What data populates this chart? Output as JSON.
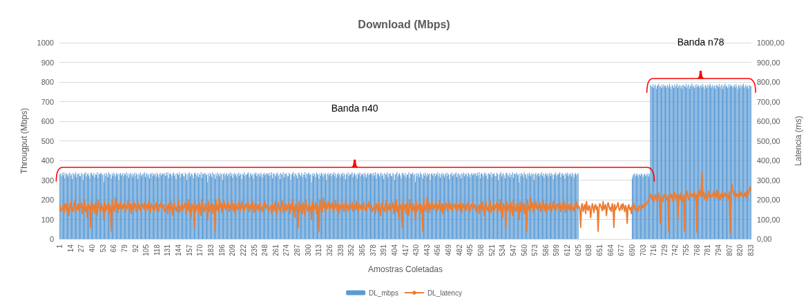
{
  "chart_data": {
    "type": "bar",
    "title": "Download (Mbps)",
    "xlabel": "Amostras Coletadas",
    "ylabel": "Througput (Mbps)",
    "y2label": "Latencia (ms)",
    "categories": [
      "1",
      null,
      null,
      null,
      null,
      null,
      null,
      null,
      null,
      null,
      null,
      null,
      null,
      "14",
      null,
      null,
      null,
      null,
      null,
      null,
      null,
      null,
      null,
      null,
      null,
      null,
      "27",
      null,
      null,
      null,
      null,
      null,
      null,
      null,
      null,
      null,
      null,
      null,
      null,
      "40",
      null,
      null,
      null,
      null,
      null,
      null,
      null,
      null,
      null,
      null,
      null,
      null,
      "53",
      null,
      null,
      null,
      null,
      null,
      null,
      null,
      null,
      null,
      null,
      null,
      null,
      "66",
      null,
      null,
      null,
      null,
      null,
      null,
      null,
      null,
      null,
      null,
      null,
      null,
      "79",
      null,
      null,
      null,
      null,
      null,
      null,
      null,
      null,
      null,
      null,
      null,
      null,
      "92",
      null,
      null,
      null,
      null,
      null,
      null,
      null,
      null,
      null,
      null,
      null,
      null,
      "105",
      null,
      null,
      null,
      null,
      null,
      null,
      null,
      null,
      null,
      null,
      null,
      null,
      "118",
      null,
      null,
      null,
      null,
      null,
      null,
      null,
      null,
      null,
      null,
      null,
      null,
      "131",
      null,
      null,
      null,
      null,
      null,
      null,
      null,
      null,
      null,
      null,
      null,
      null,
      "144",
      null,
      null,
      null,
      null,
      null,
      null,
      null,
      null,
      null,
      null,
      null,
      null,
      "157",
      null,
      null,
      null,
      null,
      null,
      null,
      null,
      null,
      null,
      null,
      null,
      null,
      "170",
      null,
      null,
      null,
      null,
      null,
      null,
      null,
      null,
      null,
      null,
      null,
      null,
      "183",
      null,
      null,
      null,
      null,
      null,
      null,
      null,
      null,
      null,
      null,
      null,
      null,
      "196",
      null,
      null,
      null,
      null,
      null,
      null,
      null,
      null,
      null,
      null,
      null,
      null,
      "209",
      null,
      null,
      null,
      null,
      null,
      null,
      null,
      null,
      null,
      null,
      null,
      null,
      "222",
      null,
      null,
      null,
      null,
      null,
      null,
      null,
      null,
      null,
      null,
      null,
      null,
      "235",
      null,
      null,
      null,
      null,
      null,
      null,
      null,
      null,
      null,
      null,
      null,
      null,
      "248",
      null,
      null,
      null,
      null,
      null,
      null,
      null,
      null,
      null,
      null,
      null,
      null,
      "261",
      null,
      null,
      null,
      null,
      null,
      null,
      null,
      null,
      null,
      null,
      null,
      null,
      "274",
      null,
      null,
      null,
      null,
      null,
      null,
      null,
      null,
      null,
      null,
      null,
      null,
      "287",
      null,
      null,
      null,
      null,
      null,
      null,
      null,
      null,
      null,
      null,
      null,
      null,
      "300",
      null,
      null,
      null,
      null,
      null,
      null,
      null,
      null,
      null,
      null,
      null,
      null,
      "313",
      null,
      null,
      null,
      null,
      null,
      null,
      null,
      null,
      null,
      null,
      null,
      null,
      "326",
      null,
      null,
      null,
      null,
      null,
      null,
      null,
      null,
      null,
      null,
      null,
      null,
      "339",
      null,
      null,
      null,
      null,
      null,
      null,
      null,
      null,
      null,
      null,
      null,
      null,
      "352",
      null,
      null,
      null,
      null,
      null,
      null,
      null,
      null,
      null,
      null,
      null,
      null,
      "365",
      null,
      null,
      null,
      null,
      null,
      null,
      null,
      null,
      null,
      null,
      null,
      null,
      "378",
      null,
      null,
      null,
      null,
      null,
      null,
      null,
      null,
      null,
      null,
      null,
      null,
      "391",
      null,
      null,
      null,
      null,
      null,
      null,
      null,
      null,
      null,
      null,
      null,
      null,
      "404",
      null,
      null,
      null,
      null,
      null,
      null,
      null,
      null,
      null,
      null,
      null,
      null,
      "417",
      null,
      null,
      null,
      null,
      null,
      null,
      null,
      null,
      null,
      null,
      null,
      null,
      "430",
      null,
      null,
      null,
      null,
      null,
      null,
      null,
      null,
      null,
      null,
      null,
      null,
      "443",
      null,
      null,
      null,
      null,
      null,
      null,
      null,
      null,
      null,
      null,
      null,
      null,
      "456",
      null,
      null,
      null,
      null,
      null,
      null,
      null,
      null,
      null,
      null,
      null,
      null,
      "469",
      null,
      null,
      null,
      null,
      null,
      null,
      null,
      null,
      null,
      null,
      null,
      null,
      "482",
      null,
      null,
      null,
      null,
      null,
      null,
      null,
      null,
      null,
      null,
      null,
      null,
      "495",
      null,
      null,
      null,
      null,
      null,
      null,
      null,
      null,
      null,
      null,
      null,
      null,
      "508",
      null,
      null,
      null,
      null,
      null,
      null,
      null,
      null,
      null,
      null,
      null,
      null,
      "521",
      null,
      null,
      null,
      null,
      null,
      null,
      null,
      null,
      null,
      null,
      null,
      null,
      "534",
      null,
      null,
      null,
      null,
      null,
      null,
      null,
      null,
      null,
      null,
      null,
      null,
      "547",
      null,
      null,
      null,
      null,
      null,
      null,
      null,
      null,
      null,
      null,
      null,
      null,
      "560",
      null,
      null,
      null,
      null,
      null,
      null,
      null,
      null,
      null,
      null,
      null,
      null,
      "573",
      null,
      null,
      null,
      null,
      null,
      null,
      null,
      null,
      null,
      null,
      null,
      null,
      "586",
      null,
      null,
      null,
      null,
      null,
      null,
      null,
      null,
      null,
      null,
      null,
      null,
      "599",
      null,
      null,
      null,
      null,
      null,
      null,
      null,
      null,
      null,
      null,
      null,
      null,
      "612",
      null,
      null,
      null,
      null,
      null,
      null,
      null,
      null,
      null,
      null,
      null,
      null,
      "625",
      null,
      null,
      null,
      null,
      null,
      null,
      null,
      null,
      null,
      null,
      null,
      null,
      "638",
      null,
      null,
      null,
      null,
      null,
      null,
      null,
      null,
      null,
      null,
      null,
      null,
      "651",
      null,
      null,
      null,
      null,
      null,
      null,
      null,
      null,
      null,
      null,
      null,
      null,
      "664",
      null,
      null,
      null,
      null,
      null,
      null,
      null,
      null,
      null,
      null,
      null,
      null,
      "677",
      null,
      null,
      null,
      null,
      null,
      null,
      null,
      null,
      null,
      null,
      null,
      null,
      "690",
      null,
      null,
      null,
      null,
      null,
      null,
      null,
      null,
      null,
      null,
      null,
      null,
      "703",
      null,
      null,
      null,
      null,
      null,
      null,
      null,
      null,
      null,
      null,
      null,
      null,
      "716",
      null,
      null,
      null,
      null,
      null,
      null,
      null,
      null,
      null,
      null,
      null,
      null,
      "729",
      null,
      null,
      null,
      null,
      null,
      null,
      null,
      null,
      null,
      null,
      null,
      null,
      "742",
      null,
      null,
      null,
      null,
      null,
      null,
      null,
      null,
      null,
      null,
      null,
      null,
      "755",
      null,
      null,
      null,
      null,
      null,
      null,
      null,
      null,
      null,
      null,
      null,
      null,
      "768",
      null,
      null,
      null,
      null,
      null,
      null,
      null,
      null,
      null,
      null,
      null,
      null,
      "781",
      null,
      null,
      null,
      null,
      null,
      null,
      null,
      null,
      null,
      null,
      null,
      null,
      "794",
      null,
      null,
      null,
      null,
      null,
      null,
      null,
      null,
      null,
      null,
      null,
      null,
      "807",
      null,
      null,
      null,
      null,
      null,
      null,
      null,
      null,
      null,
      null,
      null,
      null,
      "820",
      null,
      null,
      null,
      null,
      null,
      null,
      null,
      null,
      null,
      null,
      null,
      null,
      "833"
    ],
    "series": [
      {
        "name": "DL_mbps",
        "color": "#5b9bd5",
        "values": [
          330,
          335,
          320,
          338,
          325,
          340,
          310,
          332,
          336,
          328,
          318,
          334,
          339,
          322,
          330,
          305,
          337,
          331,
          326,
          340,
          315,
          333,
          329,
          336,
          321,
          320,
          338,
          332,
          300,
          327,
          335,
          341,
          318,
          330,
          336,
          324,
          310,
          334,
          339,
          328,
          322,
          337,
          315,
          331,
          326,
          340,
          312,
          335,
          329,
          333,
          338,
          325,
          330,
          290,
          334,
          321,
          337,
          329,
          316,
          340,
          332,
          327,
          308,
          335,
          323,
          339,
          330,
          318,
          336,
          326,
          334,
          300,
          331,
          337,
          324,
          331,
          336,
          319,
          333,
          327,
          340,
          322,
          335,
          312,
          329,
          338,
          325,
          334,
          317,
          330,
          339,
          321,
          336,
          328,
          305,
          333,
          326,
          340,
          320,
          332,
          327,
          334,
          340,
          316,
          331,
          337,
          323,
          330,
          309,
          336,
          328,
          339,
          320,
          333,
          326,
          335,
          318,
          338,
          329,
          314,
          332,
          337,
          325,
          330,
          336,
          330,
          335,
          320,
          338,
          325,
          340,
          310,
          332,
          336,
          328,
          318,
          334,
          339,
          322,
          330,
          305,
          337,
          331,
          326,
          340,
          315,
          333,
          329,
          336,
          321,
          320,
          338,
          332,
          300,
          327,
          335,
          341,
          318,
          330,
          336,
          324,
          310,
          334,
          339,
          328,
          322,
          337,
          315,
          331,
          326,
          340,
          312,
          335,
          329,
          333,
          338,
          325,
          330,
          290,
          334,
          321,
          337,
          329,
          316,
          340,
          332,
          327,
          308,
          335,
          323,
          339,
          330,
          318,
          336,
          326,
          334,
          300,
          331,
          337,
          324,
          331,
          336,
          319,
          333,
          327,
          340,
          322,
          335,
          312,
          329,
          338,
          325,
          334,
          317,
          330,
          339,
          321,
          336,
          328,
          305,
          333,
          326,
          340,
          320,
          332,
          327,
          334,
          340,
          316,
          331,
          337,
          323,
          330,
          309,
          336,
          328,
          339,
          320,
          333,
          326,
          335,
          318,
          338,
          329,
          314,
          332,
          337,
          325,
          330,
          336,
          330,
          335,
          320,
          338,
          325,
          340,
          310,
          332,
          336,
          328,
          318,
          334,
          339,
          322,
          330,
          305,
          337,
          331,
          326,
          340,
          315,
          333,
          329,
          336,
          321,
          320,
          338,
          332,
          300,
          327,
          335,
          341,
          318,
          330,
          336,
          324,
          310,
          334,
          339,
          328,
          322,
          337,
          315,
          331,
          326,
          340,
          312,
          335,
          329,
          333,
          338,
          325,
          330,
          290,
          334,
          321,
          337,
          329,
          316,
          340,
          332,
          327,
          308,
          335,
          323,
          339,
          330,
          318,
          336,
          326,
          334,
          300,
          331,
          337,
          324,
          331,
          336,
          319,
          333,
          327,
          340,
          322,
          335,
          312,
          329,
          338,
          325,
          334,
          317,
          330,
          339,
          321,
          336,
          328,
          305,
          333,
          326,
          340,
          320,
          332,
          327,
          334,
          340,
          316,
          331,
          337,
          323,
          330,
          309,
          336,
          328,
          339,
          320,
          333,
          326,
          335,
          318,
          338,
          329,
          314,
          332,
          337,
          325,
          330,
          336,
          330,
          335,
          320,
          338,
          325,
          340,
          310,
          332,
          336,
          328,
          318,
          334,
          339,
          322,
          330,
          305,
          337,
          331,
          326,
          340,
          315,
          333,
          329,
          336,
          321,
          320,
          338,
          332,
          300,
          327,
          335,
          341,
          318,
          330,
          336,
          324,
          310,
          334,
          339,
          328,
          322,
          337,
          315,
          331,
          326,
          340,
          312,
          335,
          329,
          333,
          338,
          325,
          330,
          290,
          334,
          321,
          337,
          329,
          316,
          340,
          332,
          327,
          308,
          335,
          323,
          339,
          330,
          318,
          336,
          326,
          334,
          300,
          331,
          337,
          324,
          331,
          336,
          319,
          333,
          327,
          340,
          322,
          335,
          312,
          329,
          338,
          325,
          334,
          317,
          330,
          339,
          321,
          336,
          328,
          305,
          333,
          326,
          340,
          320,
          332,
          327,
          334,
          340,
          316,
          331,
          337,
          323,
          330,
          309,
          336,
          328,
          339,
          320,
          333,
          326,
          335,
          318,
          338,
          329,
          314,
          332,
          337,
          325,
          330,
          336,
          330,
          335,
          320,
          338,
          325,
          340,
          310,
          332,
          336,
          328,
          318,
          334,
          339,
          322,
          330,
          305,
          337,
          331,
          326,
          340,
          315,
          333,
          329,
          336,
          321,
          320,
          338,
          332,
          300,
          327,
          335,
          341,
          318,
          330,
          336,
          324,
          310,
          334,
          339,
          328,
          322,
          337,
          315,
          331,
          326,
          340,
          312,
          335,
          329,
          333,
          338,
          325,
          330,
          290,
          334,
          321,
          337,
          329,
          316,
          340,
          332,
          327,
          308,
          335,
          323,
          339,
          330,
          318,
          336,
          326,
          334,
          300,
          331,
          337,
          324,
          331,
          336,
          319,
          333,
          327,
          340,
          322,
          335,
          312,
          329,
          338,
          325,
          334,
          317,
          330,
          339,
          321,
          336,
          328,
          305,
          333,
          326,
          340,
          320,
          332,
          327,
          334,
          340,
          316,
          331,
          337,
          323,
          330,
          309,
          336,
          328,
          339,
          320,
          333,
          326,
          335,
          318,
          338,
          329,
          314,
          332,
          337,
          325,
          330,
          336,
          0,
          0,
          0,
          0,
          0,
          0,
          0,
          0,
          0,
          0,
          0,
          0,
          0,
          0,
          0,
          0,
          0,
          0,
          0,
          0,
          0,
          0,
          0,
          0,
          0,
          0,
          0,
          0,
          0,
          0,
          0,
          0,
          0,
          0,
          0,
          0,
          0,
          0,
          0,
          0,
          0,
          0,
          0,
          0,
          0,
          0,
          0,
          0,
          0,
          0,
          0,
          0,
          0,
          0,
          0,
          0,
          0,
          0,
          0,
          0,
          0,
          0,
          0,
          0,
          310,
          325,
          330,
          335,
          320,
          328,
          333,
          318,
          326,
          331,
          322,
          335,
          329,
          316,
          327,
          334,
          321,
          330,
          325,
          336,
          318,
          332,
          785,
          780,
          775,
          790,
          770,
          782,
          788,
          765,
          779,
          784,
          792,
          776,
          781,
          768,
          787,
          774,
          789,
          778,
          783,
          771,
          780,
          786,
          772,
          790,
          777,
          764,
          785,
          781,
          769,
          788,
          775,
          783,
          791,
          770,
          779,
          786,
          773,
          782,
          766,
          784,
          785,
          780,
          775,
          790,
          770,
          782,
          788,
          765,
          779,
          784,
          792,
          776,
          781,
          768,
          787,
          774,
          789,
          778,
          783,
          771,
          780,
          786,
          772,
          790,
          777,
          764,
          785,
          781,
          769,
          788,
          775,
          783,
          791,
          770,
          779,
          786,
          773,
          782,
          766,
          784,
          785,
          780,
          775,
          790,
          770,
          782,
          788,
          765,
          779,
          784,
          792,
          776,
          781,
          768,
          787,
          774,
          789,
          778,
          783,
          771,
          780,
          786,
          772,
          790,
          777,
          764,
          785,
          781,
          769,
          788,
          775,
          783,
          791,
          770,
          779,
          786,
          773,
          782,
          766,
          784,
          781,
          778
        ]
      },
      {
        "name": "DL_latency",
        "type": "line",
        "axis": "y2",
        "color": "#ed7d31",
        "values": [
          175,
          140,
          150,
          160,
          170,
          130,
          180,
          165,
          145,
          190,
          155,
          120,
          170,
          185,
          150,
          160,
          140,
          175,
          195,
          135,
          165,
          150,
          180,
          145,
          170,
          160,
          185,
          130,
          175,
          150,
          200,
          140,
          165,
          110,
          180,
          155,
          170,
          60,
          190,
          145,
          165,
          175,
          130,
          185,
          155,
          120,
          200,
          170,
          150,
          140,
          180,
          150,
          165,
          100,
          190,
          140,
          170,
          155,
          185,
          130,
          175,
          160,
          40,
          200,
          150,
          170,
          140,
          210,
          160,
          185,
          135,
          175,
          155,
          190,
          165,
          150,
          175,
          160,
          185,
          140,
          170,
          155,
          195,
          165,
          145,
          180,
          130,
          175,
          160,
          150,
          185,
          170,
          140,
          165,
          190,
          155,
          175,
          145,
          160,
          180,
          170,
          155,
          185,
          140,
          165,
          175,
          150,
          190,
          160,
          135,
          180,
          165,
          155,
          175,
          145,
          170,
          185,
          150,
          160,
          140,
          175,
          165,
          190,
          155,
          170,
          175,
          140,
          150,
          160,
          170,
          130,
          180,
          165,
          145,
          190,
          155,
          120,
          170,
          185,
          150,
          160,
          140,
          175,
          195,
          135,
          165,
          150,
          180,
          145,
          170,
          160,
          185,
          130,
          175,
          150,
          200,
          140,
          165,
          110,
          180,
          155,
          170,
          60,
          190,
          145,
          165,
          175,
          130,
          185,
          155,
          120,
          200,
          170,
          150,
          140,
          180,
          150,
          165,
          100,
          190,
          140,
          170,
          155,
          185,
          130,
          175,
          160,
          40,
          200,
          150,
          170,
          140,
          210,
          160,
          185,
          135,
          175,
          155,
          190,
          165,
          150,
          175,
          160,
          185,
          140,
          170,
          155,
          195,
          165,
          145,
          180,
          130,
          175,
          160,
          150,
          185,
          170,
          140,
          165,
          190,
          155,
          175,
          145,
          160,
          180,
          170,
          155,
          185,
          140,
          165,
          175,
          150,
          190,
          160,
          135,
          180,
          165,
          155,
          175,
          145,
          170,
          185,
          150,
          160,
          140,
          175,
          165,
          190,
          155,
          170,
          175,
          140,
          150,
          160,
          170,
          130,
          180,
          165,
          145,
          190,
          155,
          120,
          170,
          185,
          150,
          160,
          140,
          175,
          195,
          135,
          165,
          150,
          180,
          145,
          170,
          160,
          185,
          130,
          175,
          150,
          200,
          140,
          165,
          110,
          180,
          155,
          170,
          60,
          190,
          145,
          165,
          175,
          130,
          185,
          155,
          120,
          200,
          170,
          150,
          140,
          180,
          150,
          165,
          100,
          190,
          140,
          170,
          155,
          185,
          130,
          175,
          160,
          40,
          200,
          150,
          170,
          140,
          210,
          160,
          185,
          135,
          175,
          155,
          190,
          165,
          150,
          175,
          160,
          185,
          140,
          170,
          155,
          195,
          165,
          145,
          180,
          130,
          175,
          160,
          150,
          185,
          170,
          140,
          165,
          190,
          155,
          175,
          145,
          160,
          180,
          170,
          155,
          185,
          140,
          165,
          175,
          150,
          190,
          160,
          135,
          180,
          165,
          155,
          175,
          145,
          170,
          185,
          150,
          160,
          140,
          175,
          165,
          190,
          155,
          170,
          175,
          140,
          150,
          160,
          170,
          130,
          180,
          165,
          145,
          190,
          155,
          120,
          170,
          185,
          150,
          160,
          140,
          175,
          195,
          135,
          165,
          150,
          180,
          145,
          170,
          160,
          185,
          130,
          175,
          150,
          200,
          140,
          165,
          110,
          180,
          155,
          170,
          60,
          190,
          145,
          165,
          175,
          130,
          185,
          155,
          120,
          200,
          170,
          150,
          140,
          180,
          150,
          165,
          100,
          190,
          140,
          170,
          155,
          185,
          130,
          175,
          160,
          40,
          200,
          150,
          170,
          140,
          210,
          160,
          185,
          135,
          175,
          155,
          190,
          165,
          150,
          175,
          160,
          185,
          140,
          170,
          155,
          195,
          165,
          145,
          180,
          130,
          175,
          160,
          150,
          185,
          170,
          140,
          165,
          190,
          155,
          175,
          145,
          160,
          180,
          170,
          155,
          185,
          140,
          165,
          175,
          150,
          190,
          160,
          135,
          180,
          165,
          155,
          175,
          145,
          170,
          185,
          150,
          160,
          140,
          175,
          165,
          190,
          155,
          170,
          175,
          140,
          150,
          160,
          170,
          130,
          180,
          165,
          145,
          190,
          155,
          120,
          170,
          185,
          150,
          160,
          140,
          175,
          195,
          135,
          165,
          150,
          180,
          145,
          170,
          160,
          185,
          130,
          175,
          150,
          200,
          140,
          165,
          110,
          180,
          155,
          170,
          60,
          190,
          145,
          165,
          175,
          130,
          185,
          155,
          120,
          200,
          170,
          150,
          140,
          180,
          150,
          165,
          100,
          190,
          140,
          170,
          155,
          185,
          130,
          175,
          160,
          40,
          200,
          150,
          170,
          140,
          210,
          160,
          185,
          135,
          175,
          155,
          190,
          165,
          150,
          175,
          160,
          185,
          140,
          170,
          155,
          195,
          165,
          145,
          180,
          130,
          175,
          160,
          150,
          185,
          170,
          140,
          165,
          190,
          155,
          175,
          145,
          160,
          180,
          170,
          155,
          185,
          140,
          165,
          175,
          150,
          190,
          160,
          135,
          180,
          165,
          155,
          175,
          145,
          170,
          185,
          150,
          160,
          140,
          175,
          165,
          190,
          155,
          170,
          165,
          150,
          60,
          170,
          180,
          140,
          160,
          175,
          130,
          190,
          155,
          145,
          170,
          165,
          110,
          150,
          180,
          160,
          135,
          170,
          175,
          150,
          165,
          40,
          155,
          180,
          170,
          160,
          145,
          190,
          150,
          165,
          175,
          120,
          160,
          185,
          170,
          150,
          160,
          140,
          180,
          165,
          60,
          175,
          150,
          160,
          170,
          185,
          155,
          145,
          160,
          175,
          150,
          180,
          165,
          140,
          170,
          155,
          80,
          165,
          175,
          150,
          160,
          130,
          170,
          155,
          180,
          165,
          145,
          160,
          150,
          140,
          165,
          170,
          155,
          150,
          175,
          160,
          165,
          180,
          170,
          175,
          185,
          190,
          200,
          210,
          230,
          215,
          200,
          220,
          190,
          210,
          225,
          205,
          195,
          215,
          235,
          200,
          80,
          220,
          210,
          190,
          225,
          215,
          230,
          205,
          200,
          220,
          40,
          215,
          230,
          210,
          225,
          195,
          220,
          240,
          205,
          215,
          230,
          100,
          210,
          225,
          200,
          235,
          215,
          190,
          220,
          40,
          230,
          210,
          245,
          220,
          200,
          215,
          235,
          225,
          215,
          230,
          220,
          240,
          205,
          225,
          35,
          235,
          210,
          250,
          230,
          215,
          340,
          220,
          240,
          205,
          230,
          215,
          195,
          225,
          245,
          210,
          230,
          220,
          215,
          225,
          240,
          210,
          230,
          215,
          250,
          205,
          235,
          220,
          200,
          230,
          215,
          240,
          210,
          225,
          235,
          215,
          230,
          220,
          205,
          240,
          30,
          210,
          280,
          250,
          235,
          220,
          240,
          215,
          230,
          225,
          210,
          235,
          220,
          240,
          225,
          215,
          230,
          220,
          235,
          210,
          245,
          225,
          230,
          250,
          265,
          245
        ]
      }
    ],
    "ylim": [
      0,
      1000
    ],
    "yticks": [
      0,
      100,
      200,
      300,
      400,
      500,
      600,
      700,
      800,
      900,
      1000
    ],
    "y2lim": [
      0,
      1000
    ],
    "y2ticks": [
      {
        "value": 0,
        "label": "0,00"
      },
      {
        "value": 100,
        "label": "100,00"
      },
      {
        "value": 200,
        "label": "200,00"
      },
      {
        "value": 300,
        "label": "300,00"
      },
      {
        "value": 400,
        "label": "400,00"
      },
      {
        "value": 500,
        "label": "500,00"
      },
      {
        "value": 600,
        "label": "600,00"
      },
      {
        "value": 700,
        "label": "700,00"
      },
      {
        "value": 800,
        "label": "800,00"
      },
      {
        "value": 900,
        "label": "900,00"
      },
      {
        "value": 1000,
        "label": "1000,00"
      }
    ],
    "grid": "y",
    "legend": "bottom",
    "annotations": [
      "Banda n40",
      "Banda n78"
    ]
  }
}
